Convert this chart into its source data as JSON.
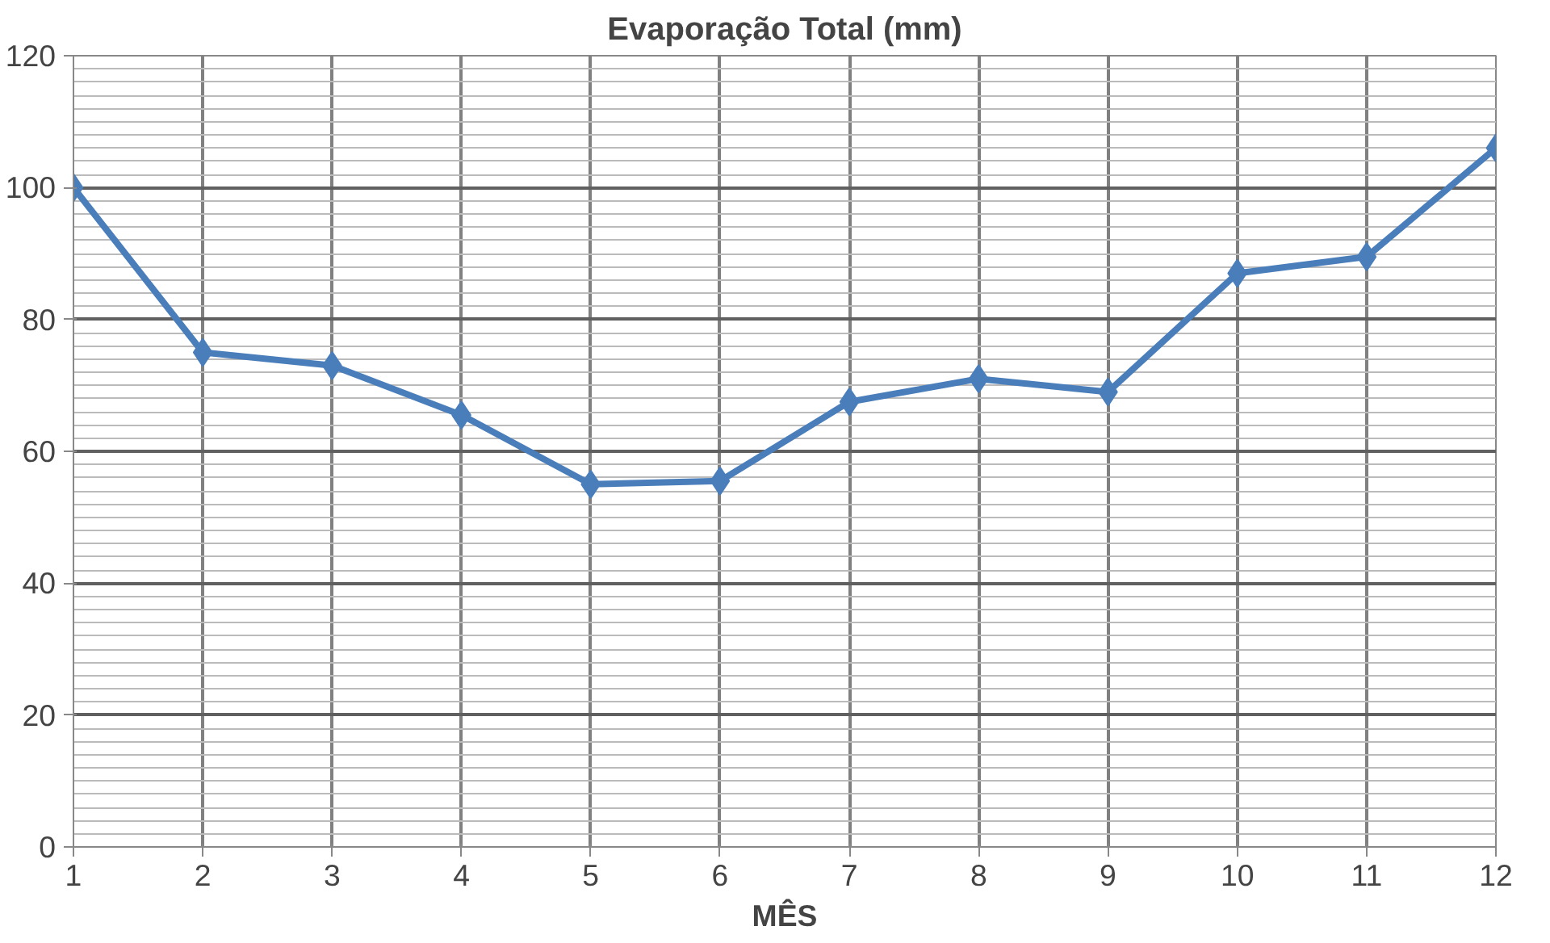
{
  "chart_data": {
    "type": "line",
    "title": "Evaporação Total (mm)",
    "xlabel": "MÊS",
    "x": [
      1,
      2,
      3,
      4,
      5,
      6,
      7,
      8,
      9,
      10,
      11,
      12
    ],
    "series": [
      {
        "color": "#4a7ebb",
        "values": [
          100,
          75,
          73,
          65.5,
          55,
          55.5,
          67.5,
          71,
          69,
          87,
          89.5,
          106
        ]
      }
    ],
    "xlim": [
      1,
      12
    ],
    "xticks": [
      1,
      2,
      3,
      4,
      5,
      6,
      7,
      8,
      9,
      10,
      11,
      12
    ],
    "ylim": [
      0,
      120
    ],
    "yticks": [
      0,
      20,
      40,
      60,
      80,
      100,
      120
    ],
    "grid": true,
    "marker": "diamond",
    "line_style": "solid"
  }
}
